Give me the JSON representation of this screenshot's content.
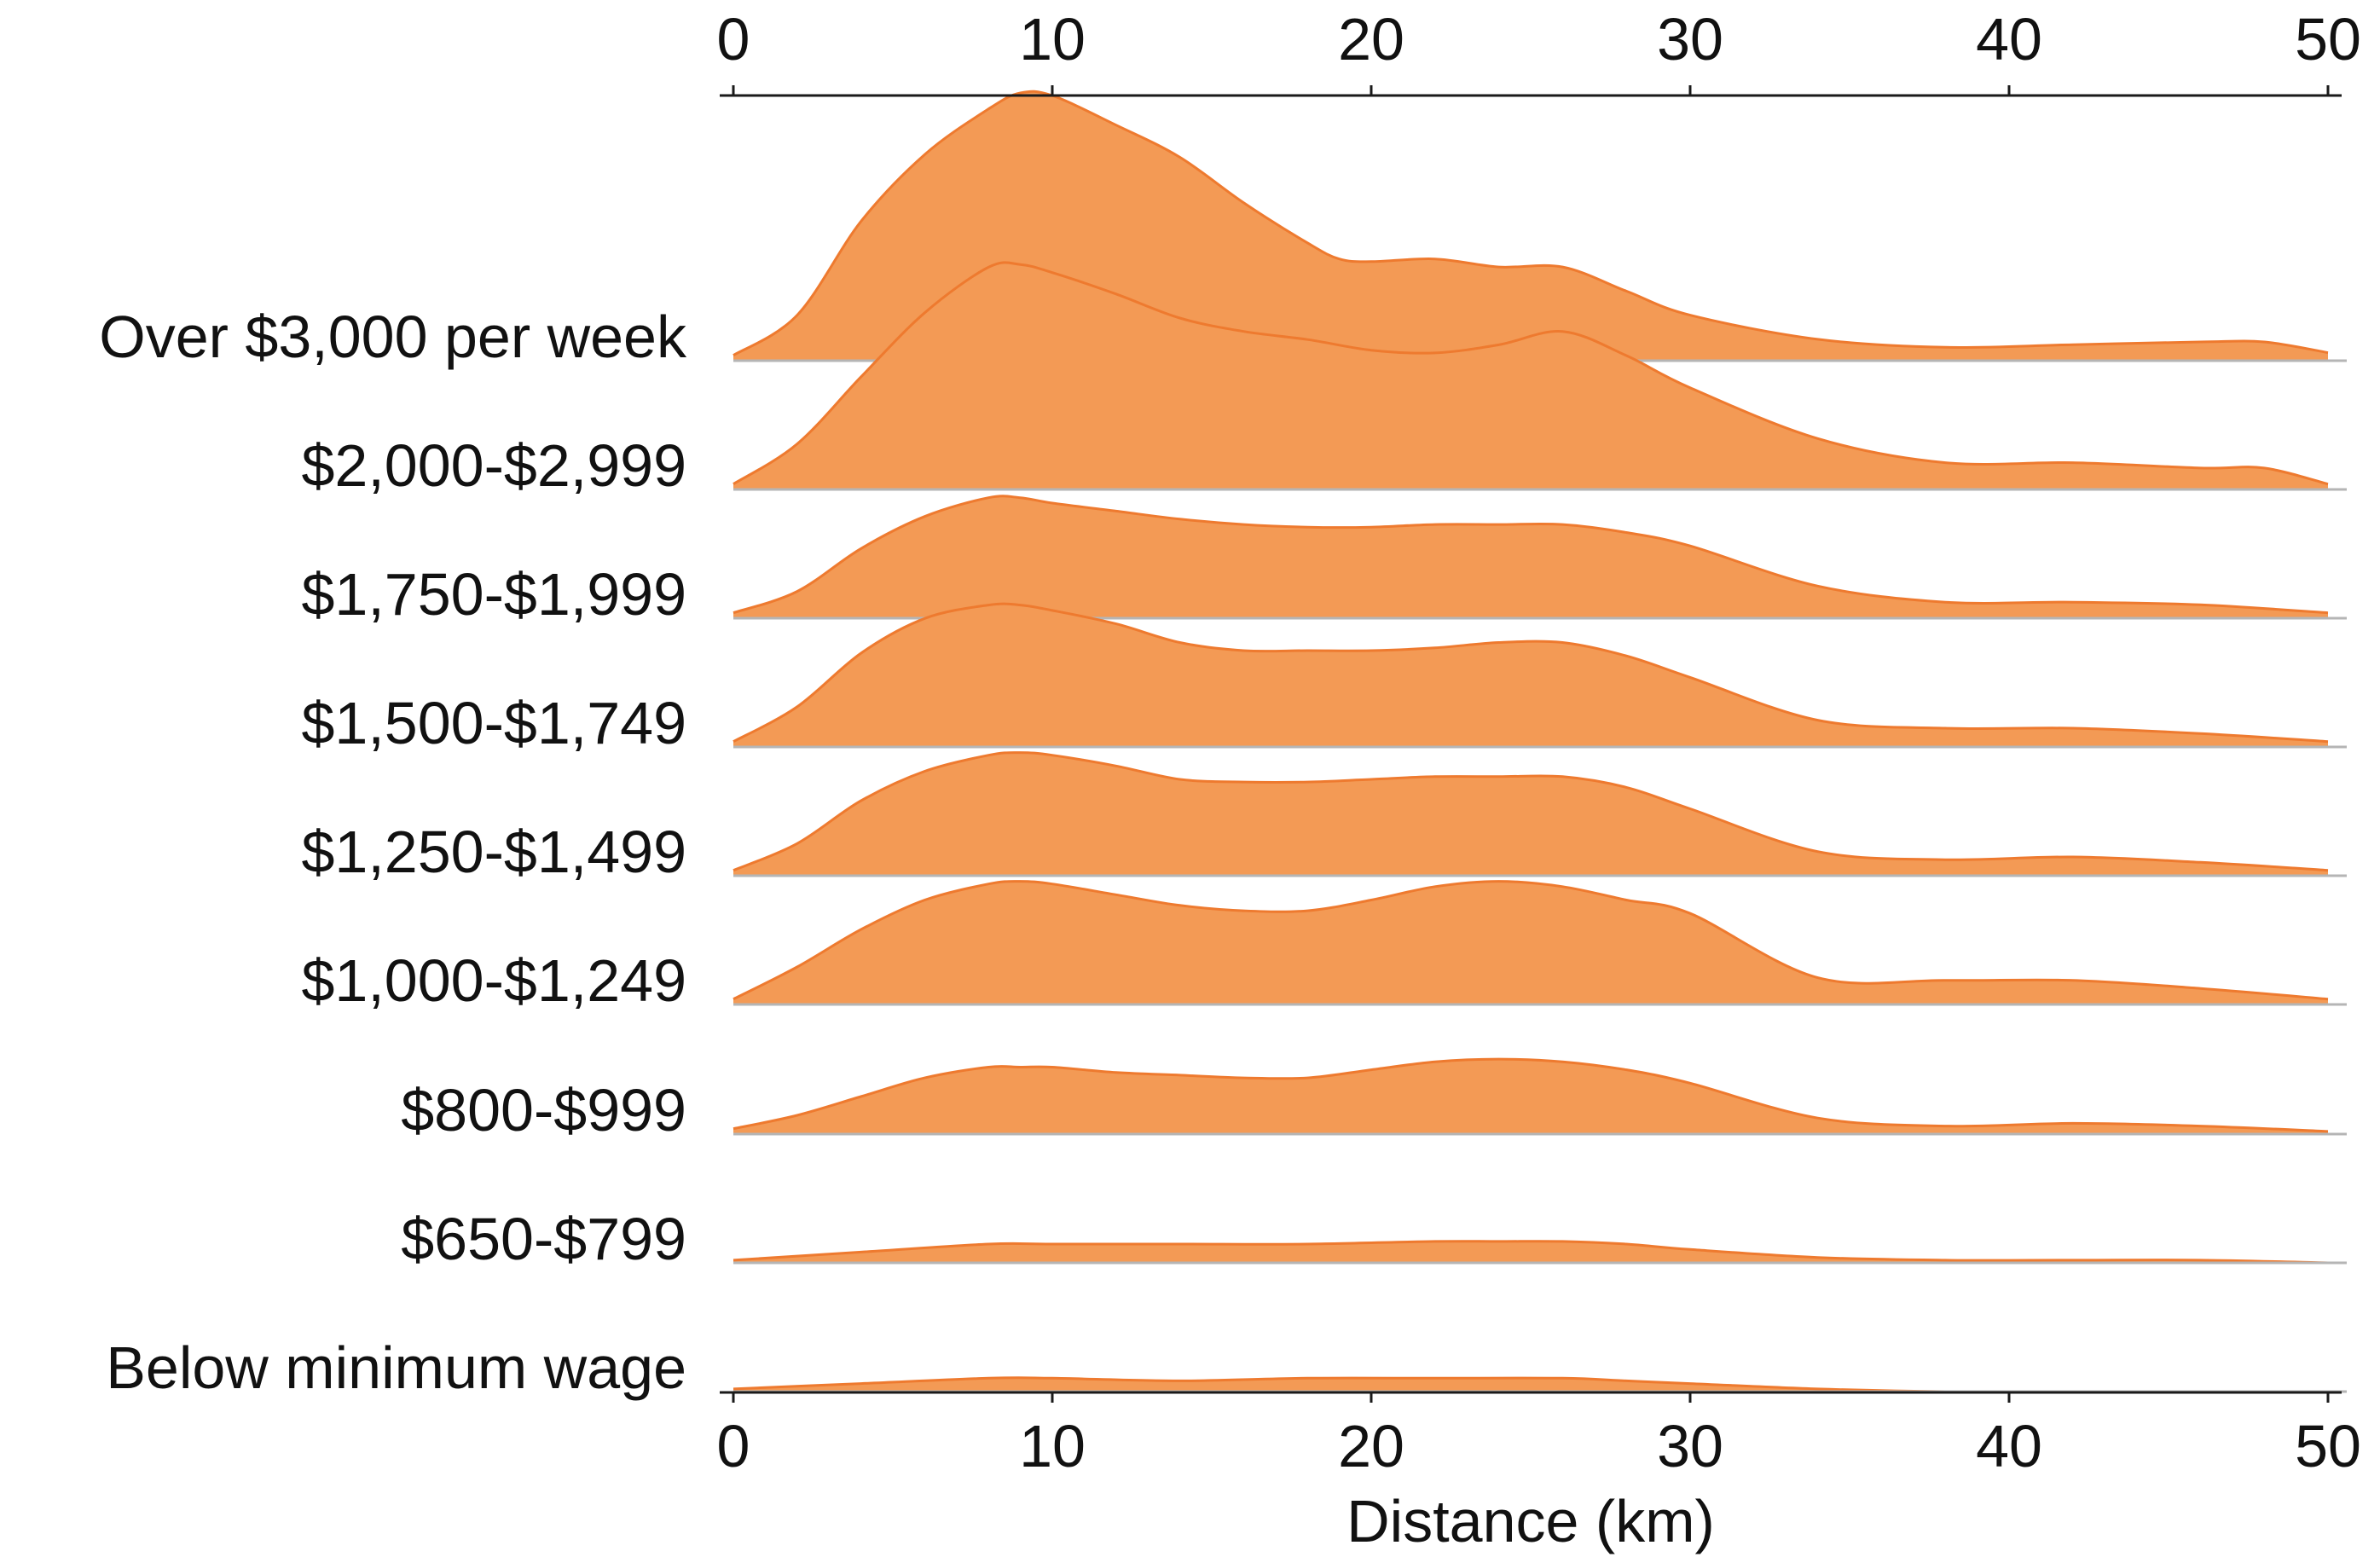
{
  "chart_data": {
    "type": "ridgeline",
    "title": "",
    "xlabel": "Distance (km)",
    "ylabel": "",
    "xlim": [
      0,
      50
    ],
    "xticks": [
      0,
      10,
      20,
      30,
      40,
      50
    ],
    "fill_color": "#f39a55",
    "line_color": "#ee7a2f",
    "axis_color": "#1a1a1a",
    "baseline_color": "#b5b5b5",
    "series": [
      {
        "name": "Over $3,000 per week",
        "x": [
          0,
          2,
          4,
          6,
          8,
          9,
          10,
          12,
          14,
          16,
          18,
          19,
          20,
          22,
          24,
          26,
          28,
          30,
          34,
          38,
          42,
          46,
          48,
          50
        ],
        "y": [
          0.02,
          0.17,
          0.52,
          0.77,
          0.94,
          1.0,
          0.99,
          0.88,
          0.76,
          0.59,
          0.44,
          0.38,
          0.37,
          0.38,
          0.35,
          0.35,
          0.26,
          0.17,
          0.08,
          0.05,
          0.06,
          0.07,
          0.07,
          0.03
        ]
      },
      {
        "name": "$2,000-$2,999",
        "x": [
          0,
          2,
          4,
          6,
          8,
          9,
          10,
          12,
          14,
          16,
          18,
          20,
          22,
          24,
          26,
          28,
          30,
          34,
          38,
          42,
          46,
          48,
          50
        ],
        "y": [
          0.02,
          0.17,
          0.42,
          0.66,
          0.83,
          0.84,
          0.81,
          0.73,
          0.64,
          0.59,
          0.56,
          0.52,
          0.51,
          0.54,
          0.59,
          0.5,
          0.38,
          0.19,
          0.1,
          0.1,
          0.08,
          0.08,
          0.02
        ]
      },
      {
        "name": "$1,750-$1,999",
        "x": [
          0,
          2,
          4,
          6,
          8,
          9,
          10,
          12,
          14,
          16,
          18,
          20,
          22,
          24,
          26,
          28,
          30,
          34,
          38,
          42,
          46,
          50
        ],
        "y": [
          0.02,
          0.1,
          0.26,
          0.38,
          0.45,
          0.45,
          0.43,
          0.4,
          0.37,
          0.35,
          0.34,
          0.34,
          0.35,
          0.35,
          0.35,
          0.32,
          0.27,
          0.12,
          0.06,
          0.06,
          0.05,
          0.02
        ]
      },
      {
        "name": "$1,500-$1,749",
        "x": [
          0,
          2,
          4,
          6,
          8,
          9,
          10,
          12,
          14,
          16,
          18,
          20,
          22,
          24,
          26,
          28,
          30,
          34,
          38,
          42,
          46,
          50
        ],
        "y": [
          0.02,
          0.15,
          0.35,
          0.48,
          0.53,
          0.53,
          0.51,
          0.46,
          0.39,
          0.36,
          0.36,
          0.36,
          0.37,
          0.39,
          0.39,
          0.34,
          0.26,
          0.1,
          0.07,
          0.07,
          0.05,
          0.02
        ]
      },
      {
        "name": "$1,250-$1,499",
        "x": [
          0,
          2,
          4,
          6,
          8,
          9,
          10,
          12,
          14,
          16,
          18,
          20,
          22,
          24,
          26,
          28,
          30,
          34,
          38,
          42,
          46,
          50
        ],
        "y": [
          0.02,
          0.12,
          0.28,
          0.39,
          0.45,
          0.46,
          0.45,
          0.41,
          0.36,
          0.35,
          0.35,
          0.36,
          0.37,
          0.37,
          0.37,
          0.33,
          0.25,
          0.09,
          0.06,
          0.07,
          0.05,
          0.02
        ]
      },
      {
        "name": "$1,000-$1,249",
        "x": [
          0,
          2,
          4,
          6,
          8,
          9,
          10,
          12,
          14,
          16,
          18,
          20,
          22,
          24,
          26,
          28,
          30,
          34,
          38,
          42,
          46,
          50
        ],
        "y": [
          0.02,
          0.14,
          0.28,
          0.39,
          0.45,
          0.46,
          0.45,
          0.41,
          0.37,
          0.35,
          0.35,
          0.39,
          0.44,
          0.46,
          0.44,
          0.39,
          0.34,
          0.1,
          0.09,
          0.09,
          0.06,
          0.02
        ]
      },
      {
        "name": "$800-$999",
        "x": [
          0,
          2,
          4,
          6,
          8,
          9,
          10,
          12,
          14,
          16,
          18,
          20,
          22,
          24,
          26,
          28,
          30,
          34,
          38,
          42,
          46,
          50
        ],
        "y": [
          0.02,
          0.07,
          0.14,
          0.21,
          0.25,
          0.25,
          0.25,
          0.23,
          0.22,
          0.21,
          0.21,
          0.24,
          0.27,
          0.28,
          0.27,
          0.24,
          0.19,
          0.06,
          0.03,
          0.04,
          0.03,
          0.01
        ]
      },
      {
        "name": "$650-$799",
        "x": [
          0,
          4,
          8,
          10,
          14,
          18,
          22,
          24,
          26,
          28,
          30,
          34,
          38,
          42,
          46,
          50
        ],
        "y": [
          0.01,
          0.04,
          0.07,
          0.07,
          0.07,
          0.07,
          0.08,
          0.08,
          0.08,
          0.07,
          0.05,
          0.02,
          0.01,
          0.01,
          0.01,
          0.0
        ]
      },
      {
        "name": "Below minimum wage",
        "x": [
          0,
          4,
          8,
          10,
          14,
          18,
          22,
          26,
          28,
          30,
          34,
          38,
          42,
          46,
          50
        ],
        "y": [
          0.01,
          0.03,
          0.05,
          0.05,
          0.04,
          0.05,
          0.05,
          0.05,
          0.04,
          0.03,
          0.01,
          0.0,
          0.0,
          0.0,
          0.0
        ]
      }
    ]
  }
}
